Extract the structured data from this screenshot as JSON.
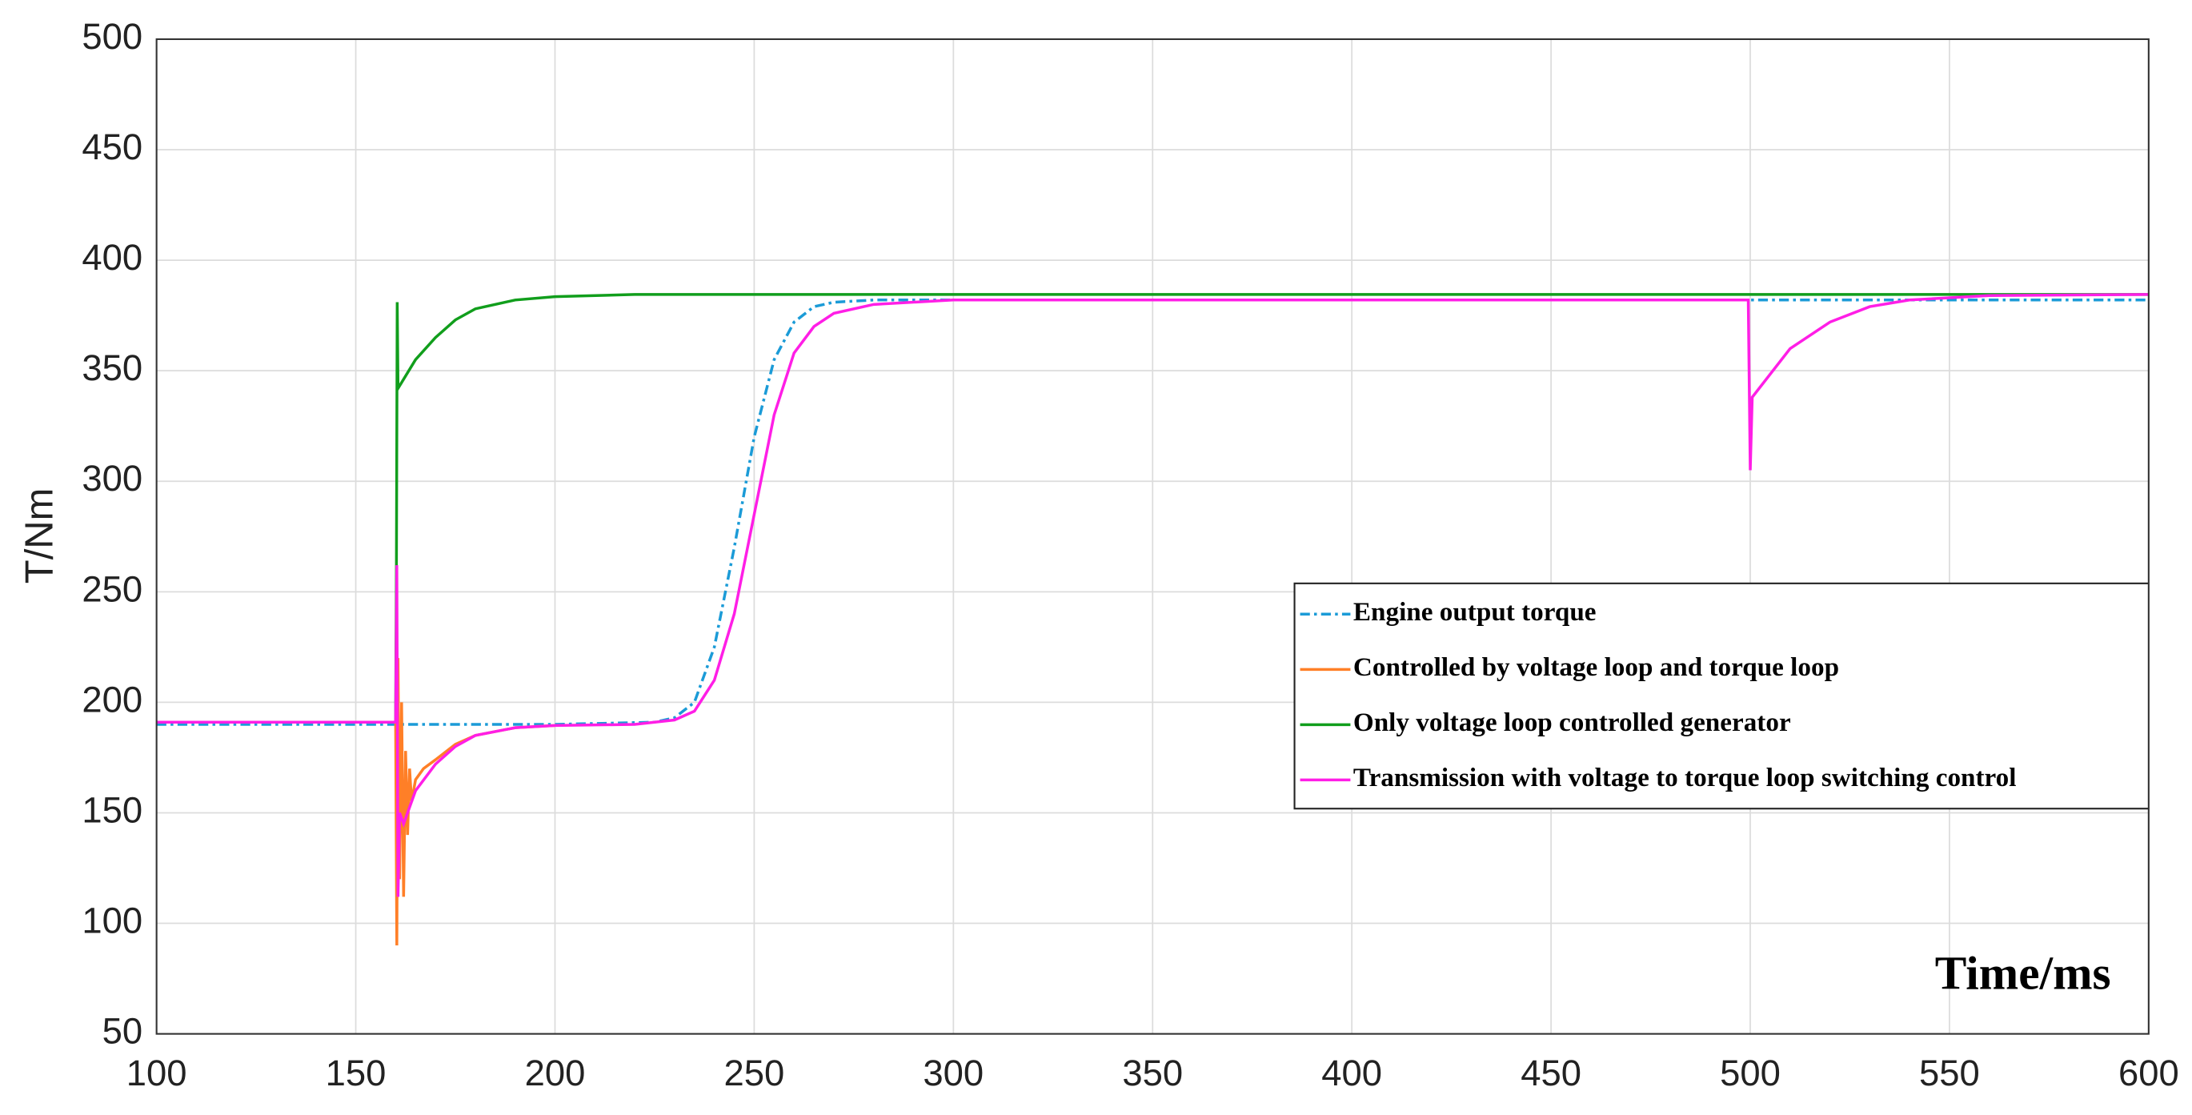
{
  "chart_data": {
    "type": "line",
    "ylabel": "T/Nm",
    "annotation": "Time/ms",
    "xlim": [
      100,
      600
    ],
    "xticks": [
      100,
      150,
      200,
      250,
      300,
      350,
      400,
      450,
      500,
      550,
      600
    ],
    "ylim": [
      50,
      500
    ],
    "yticks": [
      50,
      100,
      150,
      200,
      250,
      300,
      350,
      400,
      450,
      500
    ],
    "grid": true,
    "legend": "right",
    "series": [
      {
        "name": "Engine output torque",
        "color": "#1b9bd7",
        "dash": "dashdot",
        "x": [
          100,
          160,
          200,
          225,
          230,
          235,
          240,
          245,
          250,
          255,
          260,
          265,
          270,
          280,
          600
        ],
        "values": [
          190,
          190,
          190,
          191,
          193,
          200,
          225,
          270,
          320,
          355,
          372,
          379,
          381,
          382,
          382
        ]
      },
      {
        "name": "Controlled by voltage loop and torque loop",
        "color": "#ff7f27",
        "dash": "solid",
        "x": [
          100,
          160,
          160.3,
          160.6,
          161,
          161.5,
          162,
          162.5,
          163,
          163.5,
          164,
          165,
          167,
          170,
          175,
          180,
          190,
          200
        ],
        "values": [
          191,
          191,
          90,
          220,
          120,
          200,
          112,
          178,
          140,
          170,
          155,
          165,
          170,
          174,
          181,
          185,
          188.5,
          189.5
        ]
      },
      {
        "name": "Only voltage loop controlled generator",
        "color": "#119e1c",
        "dash": "solid",
        "x": [
          100,
          160,
          160.2,
          160.4,
          160.6,
          165,
          170,
          175,
          180,
          190,
          200,
          220,
          600
        ],
        "values": [
          191,
          191,
          262,
          381,
          342,
          355,
          365,
          373,
          378,
          382,
          383.5,
          384.5,
          384.5
        ]
      },
      {
        "name": "Transmission with voltage to torque loop switching control",
        "color": "#ff1ee6",
        "dash": "solid",
        "x": [
          100,
          160,
          160.3,
          160.6,
          161,
          162,
          165,
          170,
          175,
          180,
          190,
          200,
          220,
          230,
          235,
          240,
          245,
          250,
          255,
          260,
          265,
          270,
          280,
          300,
          499.5,
          500,
          500.5,
          510,
          520,
          530,
          540,
          560,
          600
        ],
        "values": [
          191,
          191,
          262,
          112,
          150,
          145,
          160,
          172,
          180,
          185,
          188.5,
          189.5,
          190,
          192,
          196,
          210,
          240,
          285,
          330,
          358,
          370,
          376,
          380,
          382,
          382,
          305,
          338,
          360,
          372,
          379,
          382,
          384,
          384.5
        ]
      }
    ]
  }
}
